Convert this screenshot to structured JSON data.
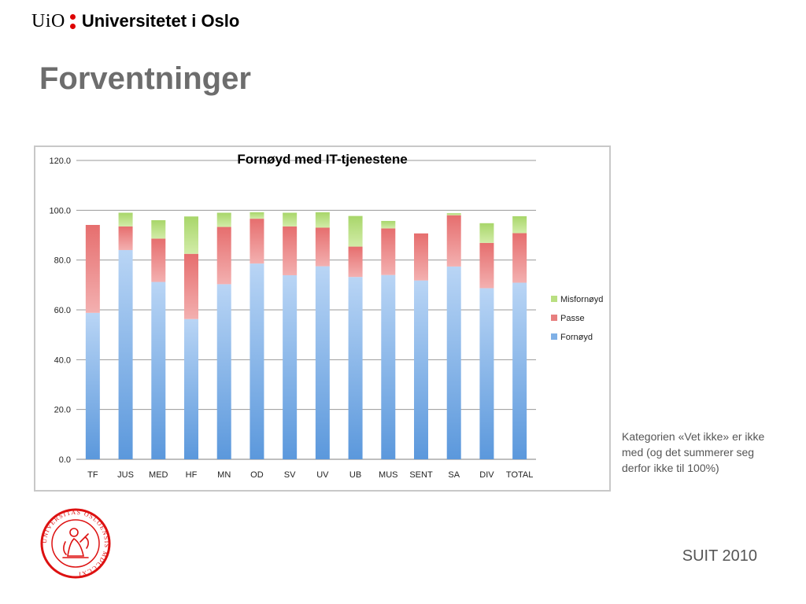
{
  "header": {
    "logo_short": "UiO",
    "logo_name": "Universitetet i Oslo"
  },
  "slide": {
    "title": "Forventninger",
    "note": "Kategorien «Vet ikke» er ikke med (og det summerer seg derfor ikke til 100%)",
    "footer": "SUIT 2010"
  },
  "seal": {
    "text": "UNIVERSITAS OSLOENSIS MDCCCXI"
  },
  "colors": {
    "fornoyd": "#7fb0e6",
    "passe": "#e77f7f",
    "misfornoyd": "#b9df81",
    "grid": "#999999",
    "logo_red": "#dd0000",
    "seal_red": "#dd1111"
  },
  "chart_data": {
    "type": "bar",
    "stacked": true,
    "title": "Fornøyd med IT-tjenestene",
    "xlabel": "",
    "ylabel": "",
    "ylim": [
      0,
      120
    ],
    "yticks": [
      "0.0",
      "20.0",
      "40.0",
      "60.0",
      "80.0",
      "100.0",
      "120.0"
    ],
    "grid": true,
    "legend_position": "right",
    "categories": [
      "TF",
      "JUS",
      "MED",
      "HF",
      "MN",
      "OD",
      "SV",
      "UV",
      "UB",
      "MUS",
      "SENT",
      "SA",
      "DIV",
      "TOTAL"
    ],
    "series": [
      {
        "name": "Fornøyd",
        "color": "#7fb0e6",
        "values": [
          58.8,
          84.0,
          71.2,
          56.3,
          70.3,
          78.6,
          73.9,
          77.5,
          73.2,
          74.0,
          71.8,
          77.4,
          68.7,
          70.9
        ]
      },
      {
        "name": "Passe",
        "color": "#e77f7f",
        "values": [
          35.3,
          9.5,
          17.4,
          26.2,
          23.0,
          18.0,
          19.6,
          15.5,
          12.2,
          18.7,
          18.9,
          20.6,
          18.2,
          19.9
        ]
      },
      {
        "name": "Misfornøyd",
        "color": "#b9df81",
        "values": [
          0,
          5.5,
          7.4,
          15.0,
          5.7,
          2.6,
          5.5,
          6.2,
          12.3,
          3.0,
          0,
          0.8,
          7.9,
          6.8
        ]
      }
    ],
    "legend": [
      "Misfornøyd",
      "Passe",
      "Fornøyd"
    ]
  }
}
